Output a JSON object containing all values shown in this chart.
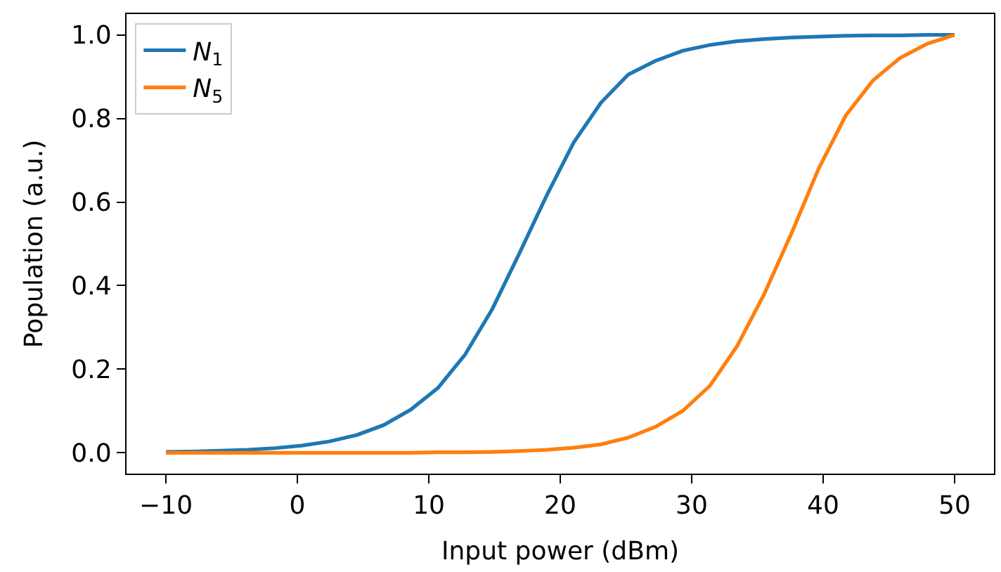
{
  "chart_data": {
    "type": "line",
    "xlabel": "Input power (dBm)",
    "ylabel": "Population (a.u.)",
    "x": [
      -10,
      -7.93,
      -5.86,
      -3.79,
      -1.72,
      0.34,
      2.41,
      4.48,
      6.55,
      8.62,
      10.69,
      12.76,
      14.83,
      16.9,
      18.97,
      21.03,
      23.1,
      25.17,
      27.24,
      29.31,
      31.38,
      33.45,
      35.52,
      37.59,
      39.66,
      41.72,
      43.79,
      45.86,
      47.93,
      50
    ],
    "series": [
      {
        "name": "N$_{1}$",
        "color": "#1f77b4",
        "values": [
          0.002,
          0.003,
          0.005,
          0.007,
          0.011,
          0.017,
          0.027,
          0.042,
          0.066,
          0.103,
          0.155,
          0.235,
          0.344,
          0.478,
          0.616,
          0.743,
          0.838,
          0.905,
          0.938,
          0.962,
          0.976,
          0.985,
          0.99,
          0.994,
          0.996,
          0.998,
          0.999,
          0.999,
          1.0,
          1.0
        ]
      },
      {
        "name": "N$_{5}$",
        "color": "#ff7f0e",
        "values": [
          0,
          0,
          0,
          0,
          0,
          0,
          0,
          0,
          0,
          0,
          0.001,
          0.001,
          0.002,
          0.004,
          0.007,
          0.012,
          0.02,
          0.036,
          0.062,
          0.1,
          0.16,
          0.255,
          0.38,
          0.525,
          0.68,
          0.807,
          0.891,
          0.945,
          0.979,
          1.0
        ]
      }
    ],
    "xlim": [
      -13,
      53
    ],
    "xticks": [
      -10,
      0,
      10,
      20,
      30,
      40,
      50
    ],
    "ylim": [
      -0.05,
      1.05
    ],
    "yticks": [
      {
        "value": 0,
        "label": "0.0"
      },
      {
        "value": 0.2,
        "label": "0.2"
      },
      {
        "value": 0.4,
        "label": "0.4"
      },
      {
        "value": 0.6,
        "label": "0.6"
      },
      {
        "value": 0.8,
        "label": "0.8"
      },
      {
        "value": 1.0,
        "label": "1.0"
      }
    ],
    "legend": "top left",
    "marker": "none",
    "line_style": "solid"
  }
}
